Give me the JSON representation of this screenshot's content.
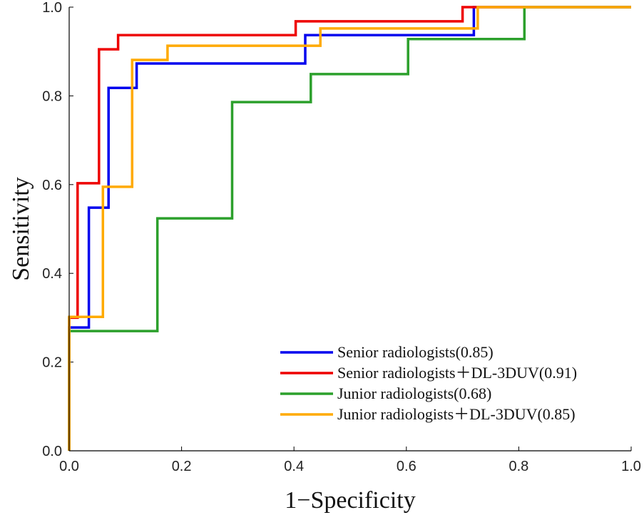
{
  "chart_data": {
    "type": "line",
    "xlabel": "1−Specificity",
    "ylabel": "Sensitivity",
    "xlim": [
      0,
      1
    ],
    "ylim": [
      0,
      1
    ],
    "xticks": [
      "0.0",
      "0.2",
      "0.4",
      "0.6",
      "0.8",
      "1.0"
    ],
    "yticks": [
      "0.0",
      "0.2",
      "0.4",
      "0.6",
      "0.8",
      "1.0"
    ],
    "grid": false,
    "legend_position": "bottom-right",
    "series": [
      {
        "name": "Senior radiologists(0.85)",
        "color": "#0000ee",
        "points": [
          [
            0,
            0
          ],
          [
            0,
            0.278
          ],
          [
            0.035,
            0.278
          ],
          [
            0.035,
            0.548
          ],
          [
            0.07,
            0.548
          ],
          [
            0.07,
            0.818
          ],
          [
            0.12,
            0.818
          ],
          [
            0.12,
            0.873
          ],
          [
            0.42,
            0.873
          ],
          [
            0.42,
            0.937
          ],
          [
            0.72,
            0.937
          ],
          [
            0.72,
            1.0
          ],
          [
            1.0,
            1.0
          ]
        ]
      },
      {
        "name": "Senior radiologists＋DL-3DUV(0.91)",
        "color": "#ee0000",
        "points": [
          [
            0,
            0
          ],
          [
            0,
            0.3
          ],
          [
            0.015,
            0.3
          ],
          [
            0.015,
            0.603
          ],
          [
            0.053,
            0.603
          ],
          [
            0.053,
            0.905
          ],
          [
            0.087,
            0.905
          ],
          [
            0.087,
            0.937
          ],
          [
            0.403,
            0.937
          ],
          [
            0.403,
            0.968
          ],
          [
            0.7,
            0.968
          ],
          [
            0.7,
            1.0
          ],
          [
            1.0,
            1.0
          ]
        ]
      },
      {
        "name": "Junior radiologists(0.68)",
        "color": "#2ca02c",
        "points": [
          [
            0,
            0
          ],
          [
            0,
            0.27
          ],
          [
            0.157,
            0.27
          ],
          [
            0.157,
            0.524
          ],
          [
            0.29,
            0.524
          ],
          [
            0.29,
            0.786
          ],
          [
            0.43,
            0.786
          ],
          [
            0.43,
            0.849
          ],
          [
            0.603,
            0.849
          ],
          [
            0.603,
            0.928
          ],
          [
            0.81,
            0.928
          ],
          [
            0.81,
            1.0
          ],
          [
            1.0,
            1.0
          ]
        ]
      },
      {
        "name": "Junior radiologists＋DL-3DUV(0.85)",
        "color": "#ffaa00",
        "points": [
          [
            0,
            0
          ],
          [
            0,
            0.302
          ],
          [
            0.06,
            0.302
          ],
          [
            0.06,
            0.595
          ],
          [
            0.112,
            0.595
          ],
          [
            0.112,
            0.881
          ],
          [
            0.175,
            0.881
          ],
          [
            0.175,
            0.913
          ],
          [
            0.447,
            0.913
          ],
          [
            0.447,
            0.952
          ],
          [
            0.727,
            0.952
          ],
          [
            0.727,
            1.0
          ],
          [
            1.0,
            1.0
          ]
        ]
      }
    ]
  }
}
